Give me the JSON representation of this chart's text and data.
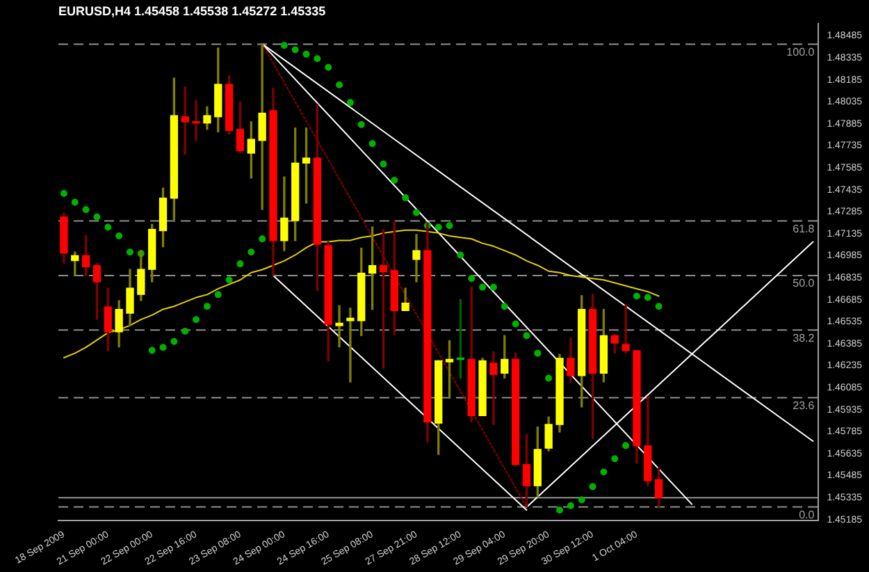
{
  "chart_data": {
    "type": "candlestick",
    "title": "EURUSD,H4 1.45458 1.45538 1.45272 1.45335",
    "categories": [
      "18 Sep 2009",
      null,
      null,
      null,
      "21 Sep 00:00",
      null,
      null,
      null,
      "22 Sep 00:00",
      null,
      null,
      null,
      "22 Sep 16:00",
      null,
      null,
      null,
      "23 Sep 08:00",
      null,
      null,
      null,
      "24 Sep 00:00",
      null,
      null,
      null,
      "24 Sep 16:00",
      null,
      null,
      null,
      "25 Sep 08:00",
      null,
      null,
      null,
      "27 Sep 21:00",
      null,
      null,
      null,
      "28 Sep 12:00",
      null,
      null,
      null,
      "29 Sep 04:00",
      null,
      null,
      null,
      "29 Sep 20:00",
      null,
      null,
      null,
      "30 Sep 12:00",
      null,
      null,
      null,
      "1 Oct 04:00",
      null,
      null,
      null,
      null,
      null,
      null,
      null,
      null,
      null,
      null,
      null,
      null,
      null,
      null,
      null,
      null
    ],
    "ohlc": [
      [
        1.4725,
        1.47276,
        1.46935,
        1.47003
      ],
      [
        1.46952,
        1.47011,
        1.46849,
        1.46986
      ],
      [
        1.46986,
        1.47122,
        1.46849,
        1.46909
      ],
      [
        1.46918,
        1.46935,
        1.46551,
        1.46807
      ],
      [
        1.46636,
        1.46764,
        1.46338,
        1.46466
      ],
      [
        1.46466,
        1.46679,
        1.46363,
        1.46619
      ],
      [
        1.46593,
        1.46892,
        1.46508,
        1.46764
      ],
      [
        1.46721,
        1.4702,
        1.46679,
        1.46892
      ],
      [
        1.46892,
        1.47199,
        1.46807,
        1.47165
      ],
      [
        1.47156,
        1.47446,
        1.47046,
        1.47378
      ],
      [
        1.47378,
        1.48197,
        1.47233,
        1.47941
      ],
      [
        1.47933,
        1.48137,
        1.47677,
        1.47899
      ],
      [
        1.47899,
        1.48044,
        1.47771,
        1.4789
      ],
      [
        1.4789,
        1.48001,
        1.47847,
        1.47941
      ],
      [
        1.47933,
        1.48402,
        1.4783,
        1.48154
      ],
      [
        1.48154,
        1.48214,
        1.47813,
        1.47839
      ],
      [
        1.47847,
        1.48035,
        1.47685,
        1.47702
      ],
      [
        1.47685,
        1.47899,
        1.47515,
        1.47779
      ],
      [
        1.47771,
        1.48428,
        1.47301,
        1.47958
      ],
      [
        1.47975,
        1.48129,
        1.46849,
        1.47088
      ],
      [
        1.47088,
        1.47523,
        1.4702,
        1.47242
      ],
      [
        1.47225,
        1.47856,
        1.47088,
        1.47617
      ],
      [
        1.47617,
        1.47856,
        1.47344,
        1.47651
      ],
      [
        1.47651,
        1.48018,
        1.46747,
        1.47063
      ],
      [
        1.47054,
        1.4708,
        1.46269,
        1.46517
      ],
      [
        1.46508,
        1.46645,
        1.46363,
        1.46525
      ],
      [
        1.46542,
        1.46628,
        1.46124,
        1.46559
      ],
      [
        1.46542,
        1.47037,
        1.4644,
        1.46866
      ],
      [
        1.46866,
        1.47182,
        1.46619,
        1.46918
      ],
      [
        1.46918,
        1.47165,
        1.46218,
        1.46875
      ],
      [
        1.46884,
        1.47216,
        1.46448,
        1.46611
      ],
      [
        1.46611,
        1.46764,
        1.46611,
        1.46662
      ],
      [
        1.4696,
        1.47131,
        1.46807,
        1.4702
      ],
      [
        1.4702,
        1.47208,
        1.45715,
        1.45851
      ],
      [
        1.45843,
        1.46269,
        1.4563,
        1.46269
      ],
      [
        1.46261,
        1.46406,
        1.46013,
        1.46278
      ],
      [
        1.46278,
        1.46687,
        1.4615,
        1.46286
      ],
      [
        1.46278,
        1.46773,
        1.45851,
        1.45894
      ],
      [
        1.45894,
        1.46286,
        1.45894,
        1.46269
      ],
      [
        1.46252,
        1.46329,
        1.45834,
        1.46175
      ],
      [
        1.46184,
        1.4644,
        1.4615,
        1.46278
      ],
      [
        1.46278,
        1.46321,
        1.45553,
        1.45561
      ],
      [
        1.45561,
        1.45766,
        1.45272,
        1.45416
      ],
      [
        1.45416,
        1.45817,
        1.4534,
        1.45664
      ],
      [
        1.45672,
        1.45886,
        1.45655,
        1.45834
      ],
      [
        1.45834,
        1.46312,
        1.45783,
        1.46286
      ],
      [
        1.46286,
        1.46423,
        1.46124,
        1.46167
      ],
      [
        1.46167,
        1.46713,
        1.45954,
        1.46619
      ],
      [
        1.46619,
        1.46721,
        1.4574,
        1.46184
      ],
      [
        1.46184,
        1.46619,
        1.46124,
        1.4644
      ],
      [
        1.4644,
        1.46448,
        1.46321,
        1.46389
      ],
      [
        1.4638,
        1.46653,
        1.46321,
        1.46338
      ],
      [
        1.46338,
        1.46338,
        1.4557,
        1.45689
      ],
      [
        1.45689,
        1.46022,
        1.45416,
        1.4545
      ],
      [
        1.45458,
        1.45538,
        1.45272,
        1.45335
      ],
      null,
      null,
      null,
      null,
      null,
      null,
      null,
      null,
      null,
      null,
      null,
      null,
      null,
      null
    ],
    "colors": [
      "#ff0000",
      "#ffff00",
      "#ff0000",
      "#ff0000",
      "#ff0000",
      "#ffff00",
      "#ffff00",
      "#ffff00",
      "#ffff00",
      "#ffff00",
      "#ffff00",
      "#ff0000",
      "#ff0000",
      "#ffff00",
      "#ffff00",
      "#ff0000",
      "#ff0000",
      "#ffff00",
      "#ffff00",
      "#ff0000",
      "#ffff00",
      "#ffff00",
      "#ffff00",
      "#ff0000",
      "#ff0000",
      "#ffff00",
      "#ffff00",
      "#ffff00",
      "#ffff00",
      "#ff0000",
      "#ff0000",
      "#ffff00",
      "#ffff00",
      "#ff0000",
      "#ffff00",
      "#ffff00",
      "#00c000",
      "#ff0000",
      "#ffff00",
      "#ff0000",
      "#ffff00",
      "#ff0000",
      "#ff0000",
      "#ffff00",
      "#ffff00",
      "#ffff00",
      "#ff0000",
      "#ffff00",
      "#ff0000",
      "#ffff00",
      "#ff0000",
      "#ff0000",
      "#ff0000",
      "#ff0000",
      "#ff0000",
      null,
      null,
      null,
      null,
      null,
      null,
      null,
      null,
      null,
      null,
      null,
      null,
      null,
      null
    ],
    "series": [
      {
        "type": "line",
        "color": "#e6d000",
        "values": [
          1.4629,
          1.4632,
          1.4636,
          1.4641,
          1.4646,
          1.4648,
          1.4651,
          1.4655,
          1.4658,
          1.4662,
          1.4664,
          1.4667,
          1.467,
          1.4672,
          1.4676,
          1.4679,
          1.4682,
          1.4687,
          1.4689,
          1.4692,
          1.4695,
          1.4699,
          1.4704,
          1.4708,
          1.4708,
          1.4709,
          1.4709,
          1.4711,
          1.4712,
          1.4714,
          1.4715,
          1.4716,
          1.4716,
          1.4715,
          1.4714,
          1.4712,
          1.4711,
          1.471,
          1.4707,
          1.4705,
          1.4702,
          1.4699,
          1.4695,
          1.4692,
          1.4688,
          1.4687,
          1.4685,
          1.4684,
          1.4683,
          1.4682,
          1.468,
          1.4678,
          1.4676,
          1.4674,
          1.4671,
          null,
          null,
          null,
          null,
          null,
          null,
          null,
          null,
          null,
          null,
          null,
          null,
          null,
          null
        ]
      },
      {
        "type": "scatter",
        "color": "#00b000",
        "marker": "circle",
        "values": [
          1.4741,
          1.4735,
          1.473,
          1.4725,
          1.4718,
          1.4712,
          1.4701,
          1.47,
          1.4634,
          1.4636,
          1.464,
          1.4647,
          1.4655,
          1.4664,
          1.4672,
          1.4682,
          1.4693,
          1.4701,
          1.471,
          null,
          1.4842,
          1.4839,
          1.4836,
          1.4833,
          1.4827,
          1.4815,
          1.4803,
          1.4788,
          1.4775,
          1.4761,
          1.475,
          1.4738,
          1.4728,
          1.4719,
          1.4718,
          1.4719,
          1.4699,
          1.4683,
          1.4677,
          1.4677,
          1.4664,
          1.4652,
          1.4644,
          1.4632,
          1.4615,
          1.4525,
          1.4528,
          1.4532,
          1.4541,
          1.4551,
          1.456,
          1.4569,
          1.4671,
          1.467,
          1.4664,
          null,
          null,
          null,
          null,
          null,
          null,
          null,
          null,
          null,
          null,
          null,
          null,
          null,
          null
        ]
      },
      {
        "type": "line",
        "color": "#8b0000",
        "line_style": "dotted",
        "values": [
          null,
          null,
          null,
          null,
          null,
          null,
          null,
          null,
          null,
          null,
          null,
          null,
          null,
          null,
          null,
          null,
          null,
          null,
          1.4843,
          null,
          null,
          null,
          null,
          null,
          null,
          null,
          null,
          null,
          null,
          null,
          null,
          null,
          null,
          null,
          null,
          null,
          null,
          null,
          null,
          null,
          null,
          null,
          1.4527,
          null,
          null,
          null,
          null,
          null,
          null,
          null,
          null,
          null,
          null,
          null,
          null,
          null,
          null,
          null,
          null,
          null,
          null,
          null,
          null,
          null,
          null,
          null,
          null,
          null,
          null
        ]
      },
      {
        "type": "line",
        "color": "#ffffff",
        "values": [
          null,
          null,
          null,
          null,
          null,
          null,
          null,
          null,
          null,
          null,
          null,
          null,
          null,
          null,
          null,
          null,
          null,
          null,
          1.4843,
          null,
          null,
          null,
          null,
          null,
          null,
          null,
          null,
          null,
          null,
          null,
          null,
          null,
          null,
          null,
          null,
          null,
          null,
          null,
          null,
          null,
          null,
          null,
          null,
          null,
          null,
          null,
          null,
          null,
          null,
          null,
          null,
          null,
          null,
          null,
          null,
          null,
          null,
          null,
          null,
          null,
          null,
          null,
          null,
          null,
          null,
          null,
          null,
          null,
          1.4572
        ]
      },
      {
        "type": "line",
        "color": "#ffffff",
        "values": [
          null,
          null,
          null,
          null,
          null,
          null,
          null,
          null,
          null,
          null,
          null,
          null,
          null,
          null,
          null,
          null,
          null,
          null,
          1.4843,
          null,
          null,
          null,
          null,
          null,
          null,
          null,
          null,
          null,
          null,
          null,
          null,
          null,
          null,
          null,
          null,
          null,
          null,
          null,
          null,
          null,
          null,
          null,
          null,
          null,
          null,
          null,
          null,
          null,
          null,
          null,
          null,
          null,
          null,
          null,
          null,
          null,
          null,
          1.4529,
          null,
          null,
          null,
          null,
          null,
          null,
          null,
          null,
          null,
          null,
          null
        ]
      },
      {
        "type": "line",
        "color": "#ffffff",
        "values": [
          null,
          null,
          null,
          null,
          null,
          null,
          null,
          null,
          null,
          null,
          null,
          null,
          null,
          null,
          null,
          null,
          null,
          null,
          null,
          1.4685,
          null,
          null,
          null,
          null,
          null,
          null,
          null,
          null,
          null,
          null,
          null,
          null,
          null,
          null,
          null,
          null,
          null,
          null,
          null,
          null,
          null,
          null,
          1.4525,
          null,
          null,
          null,
          null,
          null,
          null,
          null,
          null,
          null,
          null,
          null,
          null,
          null,
          null,
          null,
          null,
          null,
          null,
          null,
          null,
          null,
          null,
          null,
          null,
          null,
          null
        ]
      },
      {
        "type": "line",
        "color": "#ffffff",
        "values": [
          null,
          null,
          null,
          null,
          null,
          null,
          null,
          null,
          null,
          null,
          null,
          null,
          null,
          null,
          null,
          null,
          null,
          null,
          null,
          null,
          null,
          null,
          null,
          null,
          null,
          null,
          null,
          null,
          null,
          null,
          null,
          null,
          null,
          null,
          null,
          null,
          null,
          null,
          null,
          null,
          null,
          null,
          1.4527,
          null,
          null,
          null,
          null,
          null,
          null,
          null,
          null,
          null,
          null,
          null,
          null,
          null,
          null,
          null,
          null,
          null,
          null,
          null,
          null,
          null,
          null,
          null,
          null,
          null,
          1.4708
        ]
      }
    ],
    "ylim": [
      1.4518,
      1.4857
    ],
    "yticks": [
      1.45185,
      1.45335,
      1.45485,
      1.45635,
      1.45785,
      1.45935,
      1.46085,
      1.46235,
      1.46385,
      1.46535,
      1.46685,
      1.46835,
      1.46985,
      1.47135,
      1.47285,
      1.47435,
      1.47585,
      1.47735,
      1.47885,
      1.48035,
      1.48185,
      1.48335,
      1.48485
    ],
    "ref_lines": [
      {
        "axis": "y",
        "value": 1.48428,
        "color": "#909090",
        "line_style": "dashed"
      },
      {
        "axis": "y",
        "value": 1.47222,
        "color": "#909090",
        "line_style": "dashed"
      },
      {
        "axis": "y",
        "value": 1.4685,
        "color": "#909090",
        "line_style": "dashed"
      },
      {
        "axis": "y",
        "value": 1.46478,
        "color": "#909090",
        "line_style": "dashed"
      },
      {
        "axis": "y",
        "value": 1.46017,
        "color": "#909090",
        "line_style": "dashed"
      },
      {
        "axis": "y",
        "value": 1.45272,
        "color": "#909090",
        "line_style": "dashed"
      },
      {
        "axis": "y",
        "value": 1.45335,
        "color": "#909090",
        "line_style": "solid"
      }
    ],
    "annotations": [
      {
        "text": "100.0",
        "y": 1.48428
      },
      {
        "text": "61.8",
        "y": 1.47222
      },
      {
        "text": "50.0",
        "y": 1.4685
      },
      {
        "text": "38.2",
        "y": 1.46478
      },
      {
        "text": "23.6",
        "y": 1.46017
      },
      {
        "text": "0.0",
        "y": 1.45272
      }
    ]
  }
}
